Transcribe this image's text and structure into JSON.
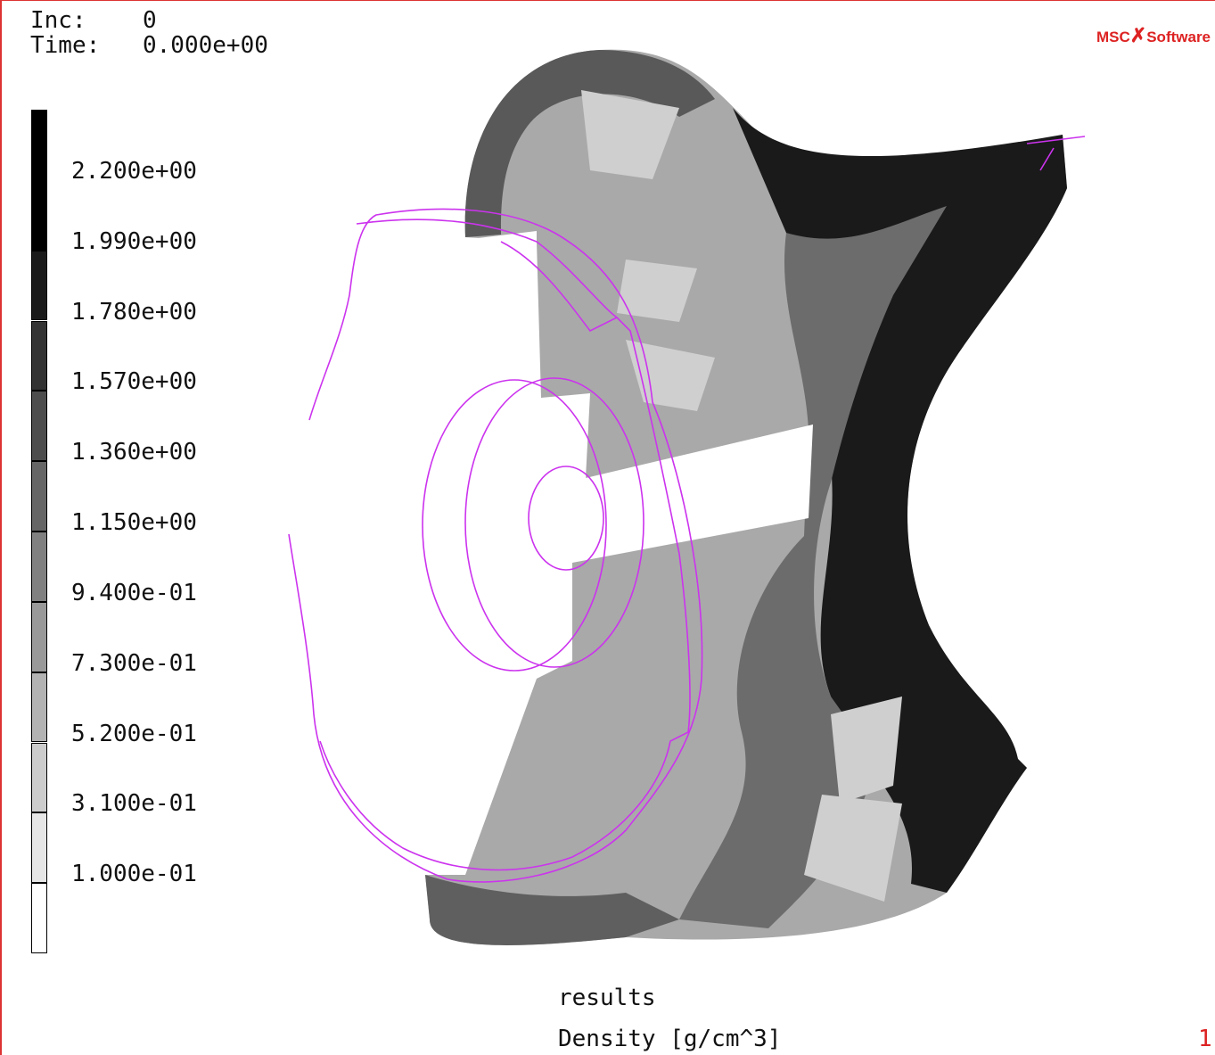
{
  "header": {
    "inc_label": "Inc:",
    "inc_value": "0",
    "time_label": "Time:",
    "time_value": "0.000e+00"
  },
  "logo": {
    "left": "MSC",
    "right": "Software"
  },
  "legend": {
    "labels": [
      "2.200e+00",
      "1.990e+00",
      "1.780e+00",
      "1.570e+00",
      "1.360e+00",
      "1.150e+00",
      "9.400e-01",
      "7.300e-01",
      "5.200e-01",
      "3.100e-01",
      "1.000e-01"
    ]
  },
  "footer": {
    "line1": "results",
    "line2": "Density [g/cm^3]",
    "index": "1"
  }
}
